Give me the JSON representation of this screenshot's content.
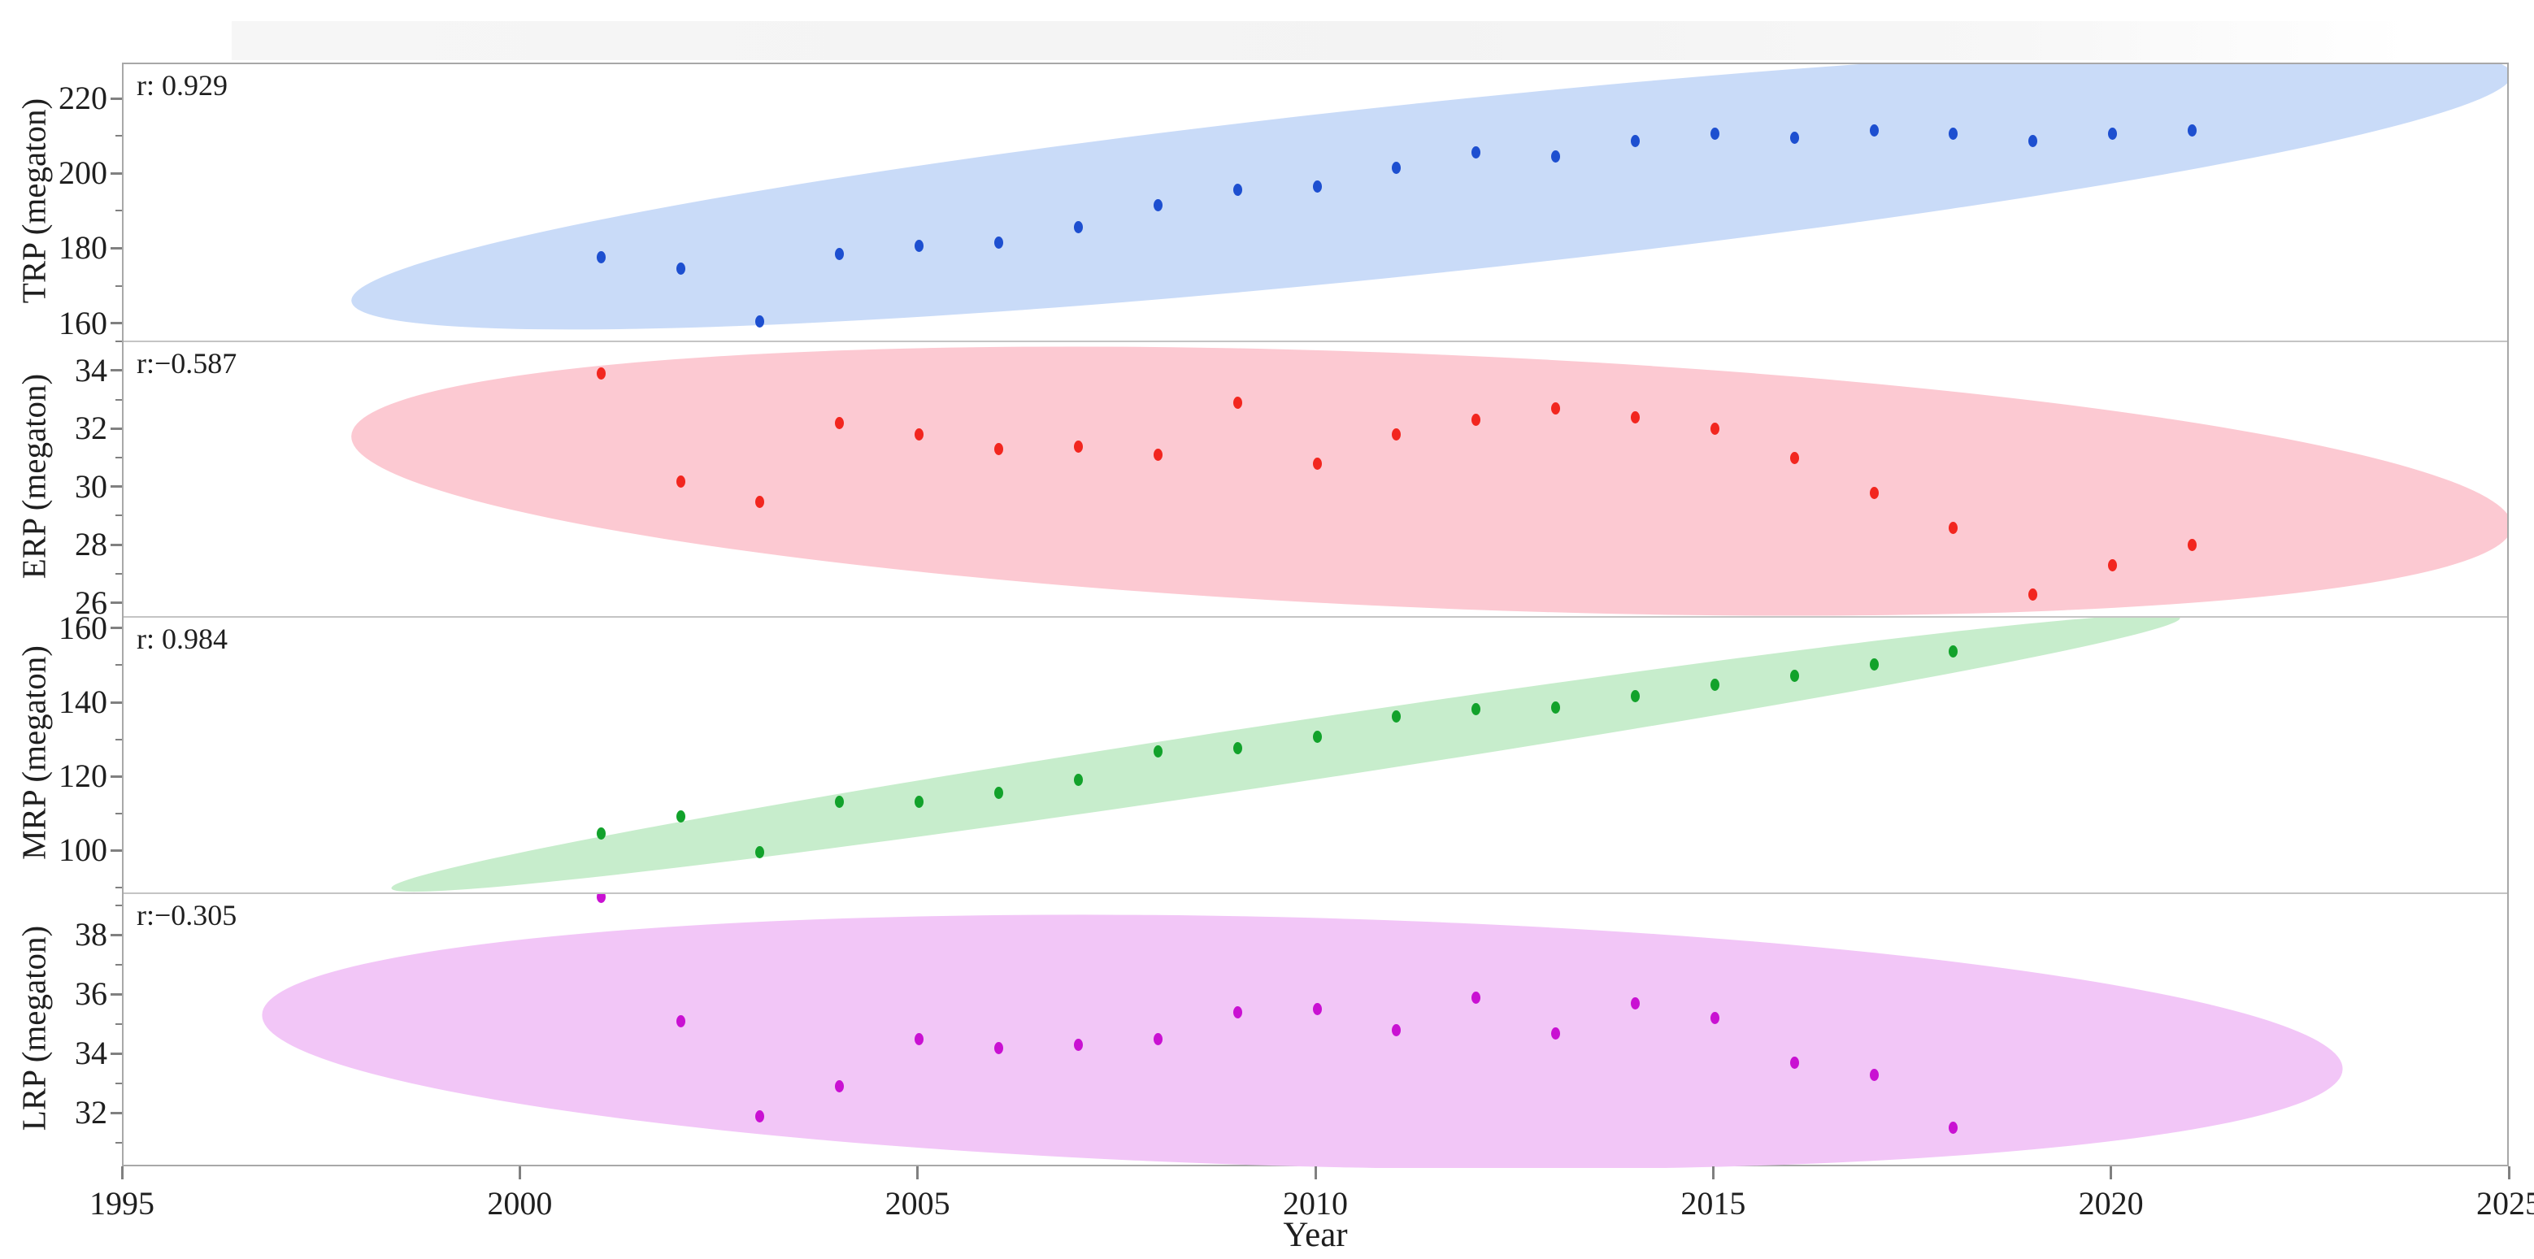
{
  "figure": {
    "kind": "stacked scatter panels with correlation ellipses"
  },
  "colors": {
    "axis_border": "#a8a8a8",
    "panel_separator": "#c4c4c4",
    "tick": "#808080",
    "text": "#1f1f1f",
    "top_band": "#f4f4f4"
  },
  "chart_data": {
    "type": "scatter",
    "x": {
      "label": "Year",
      "range": [
        1995,
        2025
      ],
      "ticks": [
        1995,
        2000,
        2005,
        2010,
        2015,
        2020,
        2025
      ]
    },
    "panels": [
      {
        "name": "TRP",
        "ylabel": "TRP (megaton)",
        "r_label": "r: 0.929",
        "r": 0.929,
        "ylim": [
          155.9,
          229.6
        ],
        "yticks": [
          160,
          180,
          200,
          220
        ],
        "yminor": [
          170,
          190,
          210
        ],
        "dot_color": "#1d4fd0",
        "ellipse_color": "#c9dbf8",
        "years": [
          2001,
          2002,
          2003,
          2004,
          2005,
          2006,
          2007,
          2008,
          2009,
          2010,
          2011,
          2012,
          2013,
          2014,
          2015,
          2016,
          2017,
          2018,
          2019,
          2020,
          2021
        ],
        "values": [
          178,
          175,
          161,
          179,
          181,
          182,
          186,
          192,
          196,
          197,
          202,
          206,
          205,
          209,
          211,
          210,
          212,
          211,
          209,
          211,
          212
        ],
        "ellipse": {
          "cx": 0.548,
          "cy": 0.447,
          "w": 0.91,
          "h": 0.62,
          "angle": -6
        }
      },
      {
        "name": "ERP",
        "ylabel": "ERP (megaton)",
        "r_label": "r:−0.587",
        "r": -0.587,
        "ylim": [
          25.6,
          35.1
        ],
        "yticks": [
          26,
          28,
          30,
          32,
          34
        ],
        "yminor": [
          27,
          29,
          31,
          33,
          35
        ],
        "dot_color": "#f2261f",
        "ellipse_color": "#fcc9d2",
        "years": [
          2001,
          2002,
          2003,
          2004,
          2005,
          2006,
          2007,
          2008,
          2009,
          2010,
          2011,
          2012,
          2013,
          2014,
          2015,
          2016,
          2017,
          2018,
          2019,
          2020,
          2021
        ],
        "values": [
          34.0,
          30.3,
          29.6,
          32.3,
          31.9,
          31.4,
          31.5,
          31.2,
          33.0,
          30.9,
          31.9,
          32.4,
          32.8,
          32.5,
          32.1,
          31.1,
          29.9,
          28.7,
          26.4,
          27.4,
          28.1
        ],
        "ellipse": {
          "cx": 0.548,
          "cy": 0.506,
          "w": 0.906,
          "h": 0.92,
          "angle": 2.4
        }
      },
      {
        "name": "MRP",
        "ylabel": "MRP (megaton)",
        "r_label": "r: 0.984",
        "r": 0.984,
        "ylim": [
          89.2,
          163.7
        ],
        "yticks": [
          100,
          120,
          140,
          160
        ],
        "yminor": [
          90,
          110,
          130,
          150
        ],
        "dot_color": "#12a22b",
        "ellipse_color": "#c7edcc",
        "years": [
          2001,
          2002,
          2003,
          2004,
          2005,
          2006,
          2007,
          2008,
          2009,
          2010,
          2011,
          2012,
          2013,
          2014,
          2015,
          2016,
          2017,
          2018
        ],
        "values": [
          105.5,
          110,
          100.5,
          114,
          114,
          116.5,
          120,
          127.5,
          128.5,
          131.5,
          137,
          139,
          139.5,
          142.5,
          145.5,
          148,
          151,
          154.5
        ],
        "ellipse": {
          "cx": 0.487,
          "cy": 0.49,
          "w": 0.758,
          "h": 0.22,
          "angle": -8.6
        }
      },
      {
        "name": "LRP",
        "ylabel": "LRP (megaton)",
        "r_label": "r:−0.305",
        "r": -0.305,
        "ylim": [
          30.2,
          39.5
        ],
        "yticks": [
          32,
          34,
          36,
          38
        ],
        "yminor": [
          31,
          33,
          35,
          37,
          39
        ],
        "dot_color": "#c911d2",
        "ellipse_color": "#f2c6f7",
        "years": [
          2001,
          2002,
          2003,
          2004,
          2005,
          2006,
          2007,
          2008,
          2009,
          2010,
          2011,
          2012,
          2013,
          2014,
          2015,
          2016,
          2017,
          2018
        ],
        "values": [
          39.4,
          35.2,
          32.0,
          33.0,
          34.6,
          34.3,
          34.4,
          34.6,
          35.5,
          35.6,
          34.9,
          36.0,
          34.8,
          35.8,
          35.3,
          33.8,
          33.4,
          31.6
        ],
        "ellipse": {
          "cx": 0.494,
          "cy": 0.537,
          "w": 0.872,
          "h": 0.9,
          "angle": 1.5
        }
      }
    ]
  }
}
